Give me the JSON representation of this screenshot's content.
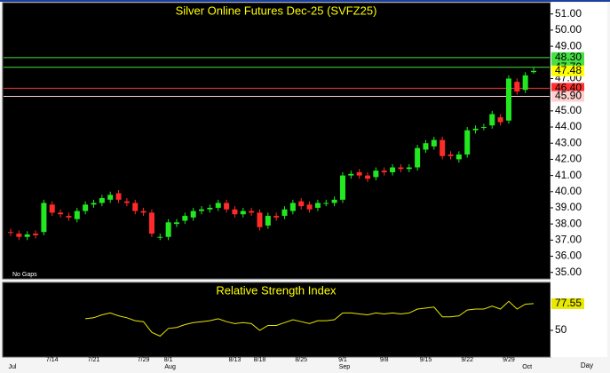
{
  "chart_data": [
    {
      "type": "candlestick",
      "title": "Silver Online Futures Dec-25 (SVFZ25)",
      "note": "No Gaps",
      "x_label": "Day",
      "categories": [
        null,
        null,
        null,
        null,
        null,
        "7/14",
        null,
        null,
        null,
        null,
        "7/21",
        null,
        null,
        null,
        null,
        null,
        "7/29",
        null,
        null,
        "8/1",
        null,
        null,
        null,
        null,
        null,
        null,
        null,
        "8/13",
        null,
        null,
        "8/18",
        null,
        null,
        null,
        null,
        "8/25",
        null,
        null,
        null,
        null,
        "9/1",
        null,
        null,
        null,
        null,
        "9/8",
        null,
        null,
        null,
        null,
        "9/15",
        null,
        null,
        null,
        null,
        "9/22",
        null,
        null,
        null,
        null,
        "9/29",
        null,
        null,
        null
      ],
      "months": [
        "Jul",
        null,
        null,
        null,
        null,
        null,
        null,
        null,
        null,
        null,
        null,
        null,
        null,
        null,
        null,
        null,
        null,
        null,
        null,
        "Aug",
        null,
        null,
        null,
        null,
        null,
        null,
        null,
        null,
        null,
        null,
        null,
        null,
        null,
        null,
        null,
        null,
        null,
        null,
        null,
        null,
        "Sep",
        null,
        null,
        null,
        null,
        null,
        null,
        null,
        null,
        null,
        null,
        null,
        null,
        null,
        null,
        null,
        null,
        null,
        null,
        null,
        null,
        null,
        "Oct",
        null
      ],
      "open": [
        37.5,
        37.4,
        37.2,
        37.4,
        37.5,
        39.2,
        38.7,
        38.5,
        38.3,
        38.8,
        39.2,
        39.3,
        39.5,
        39.9,
        39.4,
        39.3,
        38.8,
        38.7,
        37.2,
        37.2,
        38.0,
        38.2,
        38.4,
        38.8,
        38.9,
        39.0,
        39.3,
        38.9,
        38.6,
        38.8,
        38.7,
        37.9,
        38.5,
        38.5,
        38.8,
        39.4,
        39.2,
        39.0,
        39.3,
        39.3,
        39.5,
        41.0,
        41.2,
        41.0,
        40.9,
        41.3,
        41.2,
        41.5,
        41.4,
        41.5,
        42.6,
        42.8,
        43.2,
        42.3,
        42.0,
        42.3,
        43.8,
        44.0,
        44.1,
        44.6,
        44.4,
        46.8,
        46.3,
        47.4
      ],
      "high": [
        37.7,
        37.6,
        37.55,
        37.6,
        39.5,
        39.4,
        38.9,
        38.7,
        39.0,
        39.4,
        39.5,
        39.8,
        40.0,
        40.1,
        39.6,
        39.5,
        39.0,
        38.9,
        37.4,
        38.3,
        38.3,
        38.7,
        39.0,
        39.1,
        39.2,
        39.5,
        39.5,
        39.1,
        39.0,
        39.0,
        38.9,
        38.7,
        38.7,
        39.1,
        39.5,
        39.6,
        39.4,
        39.5,
        39.5,
        39.7,
        41.2,
        41.3,
        41.4,
        41.2,
        41.5,
        41.5,
        41.7,
        41.7,
        41.7,
        42.9,
        43.2,
        43.4,
        43.4,
        42.5,
        42.5,
        44.0,
        44.1,
        44.2,
        45.0,
        44.8,
        47.2,
        47.0,
        47.4,
        47.7
      ],
      "low": [
        37.25,
        37.0,
        37.0,
        37.1,
        37.3,
        38.5,
        38.4,
        38.2,
        38.1,
        38.6,
        39.0,
        39.1,
        39.3,
        39.3,
        39.1,
        38.6,
        38.5,
        37.2,
        37.0,
        37.0,
        37.8,
        38.0,
        38.2,
        38.6,
        38.7,
        38.8,
        38.7,
        38.4,
        38.4,
        38.5,
        37.6,
        37.7,
        38.2,
        38.3,
        38.6,
        38.9,
        38.7,
        38.8,
        39.1,
        39.1,
        39.3,
        40.8,
        40.8,
        40.6,
        40.7,
        41.0,
        41.0,
        41.2,
        41.2,
        41.3,
        42.4,
        42.6,
        42.0,
        42.0,
        41.8,
        42.1,
        43.6,
        43.8,
        43.9,
        44.1,
        44.2,
        46.0,
        46.1,
        47.3
      ],
      "close": [
        37.45,
        37.2,
        37.35,
        37.3,
        39.3,
        38.7,
        38.6,
        38.4,
        38.8,
        39.2,
        39.3,
        39.6,
        39.8,
        39.5,
        39.3,
        38.8,
        38.7,
        37.4,
        37.2,
        38.1,
        38.1,
        38.5,
        38.8,
        38.9,
        39.0,
        39.3,
        38.9,
        38.6,
        38.8,
        38.7,
        37.8,
        38.5,
        38.4,
        38.9,
        39.3,
        39.1,
        38.9,
        39.3,
        39.3,
        39.5,
        41.0,
        41.1,
        41.0,
        40.8,
        41.3,
        41.2,
        41.5,
        41.4,
        41.5,
        42.7,
        43.0,
        43.2,
        42.2,
        42.2,
        42.3,
        43.8,
        43.9,
        44.0,
        44.8,
        44.3,
        47.0,
        46.2,
        47.2,
        47.48
      ],
      "up_color": "#22e822",
      "down_color": "#ff2a2a",
      "last_color": "#ffff00",
      "ylim": [
        34.6,
        51.7
      ],
      "yticks": [
        {
          "value": 35,
          "label": "35.00"
        },
        {
          "value": 36,
          "label": "36.00"
        },
        {
          "value": 37,
          "label": "37.00"
        },
        {
          "value": 38,
          "label": "38.00"
        },
        {
          "value": 39,
          "label": "39.00"
        },
        {
          "value": 40,
          "label": "40.00"
        },
        {
          "value": 41,
          "label": "41.00"
        },
        {
          "value": 42,
          "label": "42.00"
        },
        {
          "value": 43,
          "label": "43.00"
        },
        {
          "value": 44,
          "label": "44.00"
        },
        {
          "value": 45,
          "label": "45.00"
        },
        {
          "value": 47,
          "label": "47.00"
        },
        {
          "value": 49,
          "label": "49.00"
        },
        {
          "value": 50,
          "label": "50.00"
        },
        {
          "value": 51,
          "label": "51.00"
        }
      ],
      "levels": [
        {
          "value": 48.3,
          "label": "48.30",
          "color": "#44e044"
        },
        {
          "value": 47.7,
          "label": "47.70",
          "color": "#44e044"
        },
        {
          "value": 46.4,
          "label": "46.40",
          "color": "#ff3030"
        },
        {
          "value": 45.9,
          "label": "45.90",
          "color": "#ffd0d0"
        }
      ]
    },
    {
      "type": "line",
      "title": "Relative Strength Index",
      "values": [
        null,
        null,
        null,
        null,
        null,
        null,
        null,
        null,
        null,
        62,
        63,
        66,
        68,
        65,
        63,
        60,
        59,
        48,
        44,
        52,
        53,
        56,
        58,
        59,
        60,
        62,
        59,
        57,
        58,
        57,
        50,
        55,
        55,
        58,
        61,
        59,
        57,
        60,
        60,
        61,
        68,
        68,
        67,
        66,
        68,
        67,
        68,
        67,
        68,
        72,
        73,
        74,
        64,
        64,
        65,
        71,
        72,
        72,
        75,
        72,
        80,
        72,
        77,
        77.55
      ],
      "color": "#e8e800",
      "ylim": [
        22.5,
        99.5
      ],
      "yticks": [
        50
      ]
    }
  ]
}
